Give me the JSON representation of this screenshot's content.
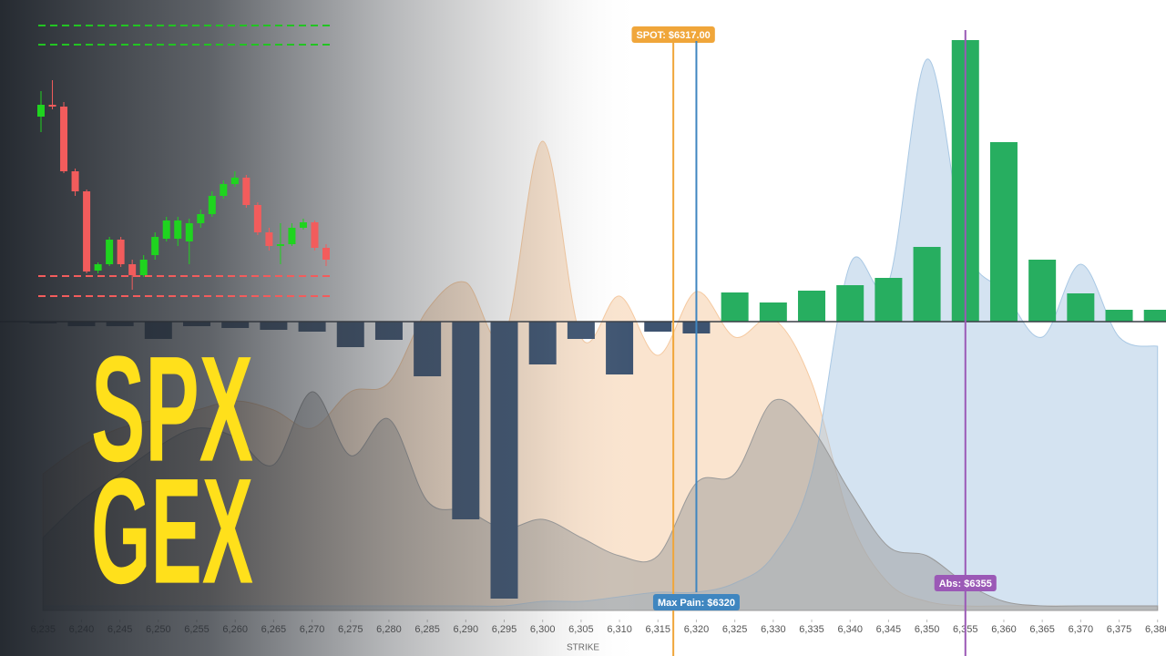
{
  "headline": [
    "SPX",
    "GEX"
  ],
  "chart_data": [
    {
      "type": "bar",
      "x_label": "STRIKE",
      "x": [
        6235,
        6240,
        6245,
        6250,
        6255,
        6260,
        6265,
        6270,
        6275,
        6280,
        6285,
        6290,
        6295,
        6300,
        6305,
        6310,
        6315,
        6320,
        6325,
        6330,
        6335,
        6340,
        6345,
        6350,
        6355,
        6360,
        6365,
        6370,
        6375,
        6380
      ],
      "values": [
        -2,
        -5,
        -5,
        -19,
        -5,
        -7,
        -9,
        -11,
        -28,
        -20,
        -60,
        -217,
        -304,
        -47,
        -19,
        -58,
        -11,
        -13,
        32,
        21,
        34,
        40,
        48,
        82,
        309,
        197,
        68,
        31,
        13,
        13
      ],
      "positive_color": "#27ae60",
      "negative_color": "#3d5370",
      "xlim": [
        6229.4,
        6381.1
      ],
      "ylim": [
        -367,
        353
      ],
      "y2lim": [
        -50,
        670
      ],
      "xticks": [
        {
          "value": 6235,
          "label": "6,235"
        },
        {
          "value": 6240,
          "label": "6,240"
        },
        {
          "value": 6245,
          "label": "6,245"
        },
        {
          "value": 6250,
          "label": "6,250"
        },
        {
          "value": 6255,
          "label": "6,255"
        },
        {
          "value": 6260,
          "label": "6,260"
        },
        {
          "value": 6265,
          "label": "6,265"
        },
        {
          "value": 6270,
          "label": "6,270"
        },
        {
          "value": 6275,
          "label": "6,275"
        },
        {
          "value": 6280,
          "label": "6,280"
        },
        {
          "value": 6285,
          "label": "6,285"
        },
        {
          "value": 6290,
          "label": "6,290"
        },
        {
          "value": 6295,
          "label": "6,295"
        },
        {
          "value": 6300,
          "label": "6,300"
        },
        {
          "value": 6305,
          "label": "6,305"
        },
        {
          "value": 6310,
          "label": "6,310"
        },
        {
          "value": 6315,
          "label": "6,315"
        },
        {
          "value": 6320,
          "label": "6,320"
        },
        {
          "value": 6325,
          "label": "6,325"
        },
        {
          "value": 6330,
          "label": "6,330"
        },
        {
          "value": 6335,
          "label": "6,335"
        },
        {
          "value": 6340,
          "label": "6,340"
        },
        {
          "value": 6345,
          "label": "6,345"
        },
        {
          "value": 6350,
          "label": "6,350"
        },
        {
          "value": 6355,
          "label": "6,355"
        },
        {
          "value": 6360,
          "label": "6,360"
        },
        {
          "value": 6365,
          "label": "6,365"
        },
        {
          "value": 6370,
          "label": "6,370"
        },
        {
          "value": 6375,
          "label": "6,375"
        },
        {
          "value": 6380,
          "label": "6,380"
        }
      ],
      "areas": [
        {
          "color": "#f5c9a0",
          "axis": "y2",
          "values": [
            150,
            180,
            200,
            210,
            220,
            230,
            220,
            200,
            240,
            250,
            330,
            360,
            300,
            515,
            300,
            345,
            280,
            350,
            300,
            320,
            250,
            100,
            30,
            10,
            5,
            5,
            5,
            5,
            5,
            5
          ]
        },
        {
          "color": "#a9c8e4",
          "axis": "y2",
          "values": [
            5,
            5,
            5,
            5,
            5,
            5,
            5,
            5,
            5,
            5,
            5,
            5,
            5,
            10,
            10,
            15,
            20,
            20,
            30,
            60,
            150,
            380,
            360,
            605,
            400,
            350,
            300,
            380,
            300,
            290
          ]
        },
        {
          "color": "#9a9a9a",
          "axis": "y2",
          "values": [
            80,
            120,
            150,
            180,
            200,
            190,
            160,
            240,
            170,
            210,
            120,
            110,
            90,
            100,
            80,
            60,
            60,
            140,
            150,
            230,
            200,
            130,
            70,
            60,
            30,
            10,
            5,
            5,
            5,
            5
          ]
        }
      ],
      "markers": [
        {
          "label": "SPOT: $6317.00",
          "value": 6317,
          "color": "#f0a63a"
        },
        {
          "label": "Max Pain: $6320",
          "value": 6320,
          "color": "#3f86c0"
        },
        {
          "label": "Abs: $6355",
          "value": 6355,
          "color": "#9b59b6"
        }
      ]
    },
    {
      "type": "candlestick",
      "up_color": "#1fd41f",
      "down_color": "#f25c5c",
      "ylim": [
        0,
        305
      ],
      "open": [
        202,
        215,
        213,
        142,
        120,
        33,
        40,
        67,
        40,
        28,
        50,
        68,
        68,
        65,
        85,
        95,
        115,
        128,
        135,
        105,
        75,
        60,
        62,
        80,
        86,
        58
      ],
      "high": [
        230,
        242,
        218,
        145,
        122,
        42,
        70,
        70,
        45,
        50,
        75,
        92,
        92,
        90,
        100,
        120,
        132,
        142,
        138,
        108,
        80,
        85,
        85,
        90,
        88,
        62
      ],
      "low": [
        185,
        210,
        140,
        115,
        30,
        30,
        38,
        37,
        12,
        26,
        45,
        65,
        60,
        40,
        80,
        92,
        112,
        125,
        102,
        72,
        55,
        40,
        60,
        78,
        55,
        38
      ],
      "close": [
        215,
        213,
        142,
        120,
        32,
        40,
        67,
        40,
        28,
        45,
        70,
        88,
        88,
        85,
        95,
        115,
        128,
        135,
        105,
        75,
        60,
        62,
        80,
        86,
        58,
        45
      ],
      "levels": [
        {
          "value": 302,
          "color": "#22c422"
        },
        {
          "value": 281,
          "color": "#22c422"
        },
        {
          "value": 27,
          "color": "#f25c5c"
        },
        {
          "value": 5,
          "color": "#f25c5c"
        }
      ]
    }
  ]
}
